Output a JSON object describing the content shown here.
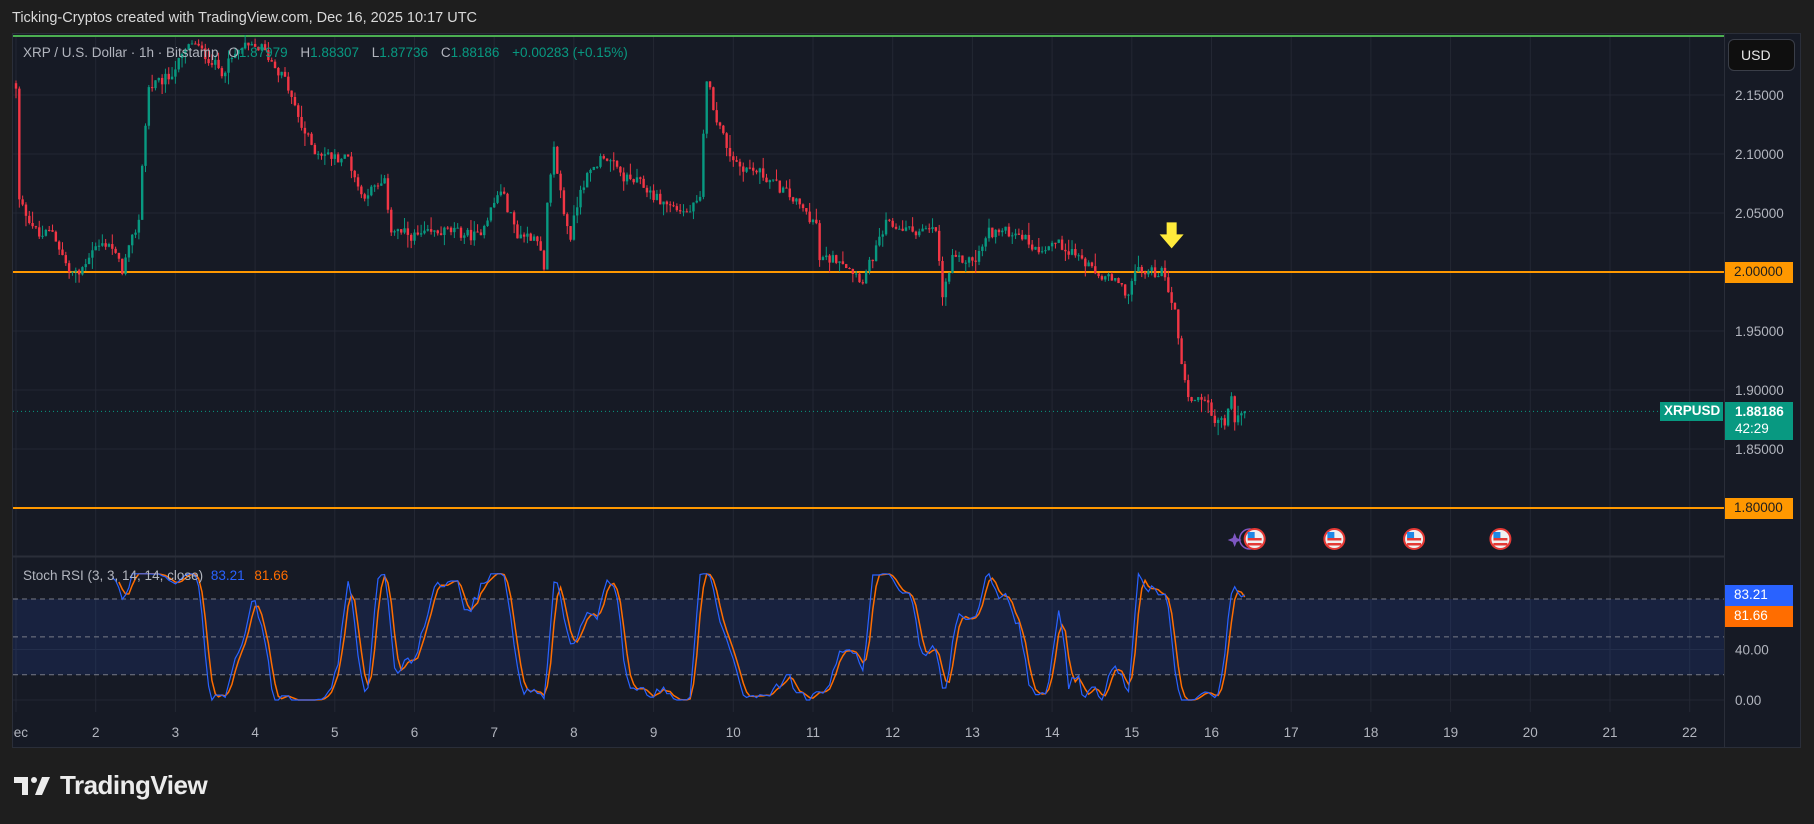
{
  "header": {
    "attribution": "Ticking-Cryptos created with TradingView.com, Dec 16, 2025 10:17 UTC"
  },
  "legend": {
    "symbol": "XRP / U.S. Dollar · 1h · Bitstamp",
    "o_label": "O",
    "o": "1.87979",
    "h_label": "H",
    "h": "1.88307",
    "l_label": "L",
    "l": "1.87736",
    "c_label": "C",
    "c": "1.88186",
    "change": "+0.00283 (+0.15%)"
  },
  "currency_button": "USD",
  "price_axis": {
    "ticks": [
      {
        "value": 2.15,
        "label": "2.15000"
      },
      {
        "value": 2.1,
        "label": "2.10000"
      },
      {
        "value": 2.05,
        "label": "2.05000"
      },
      {
        "value": 1.95,
        "label": "1.95000"
      },
      {
        "value": 1.9,
        "label": "1.90000"
      },
      {
        "value": 1.85,
        "label": "1.85000"
      }
    ]
  },
  "last_price": {
    "symbol": "XRPUSD",
    "price": "1.88186",
    "countdown": "42:29",
    "value": 1.88186,
    "color": "#089981"
  },
  "horizontal_lines": [
    {
      "price": 2.0,
      "label": "2.00000",
      "color": "#ff9800"
    },
    {
      "price": 1.8,
      "label": "1.80000",
      "color": "#ff9800"
    },
    {
      "price": 2.2,
      "color": "#4caf50"
    }
  ],
  "arrow_annotation": {
    "time": "2025-12-15T12:00",
    "price": 2.02,
    "direction": "down",
    "color": "#ffeb3b"
  },
  "events": [
    {
      "time": "2025-12-16T13:00",
      "icon": "us-flag-icon",
      "extra": "sparkle-icon"
    },
    {
      "time": "2025-12-17T13:00",
      "icon": "us-flag-icon"
    },
    {
      "time": "2025-12-18T13:00",
      "icon": "us-flag-icon"
    },
    {
      "time": "2025-12-19T15:00",
      "icon": "us-flag-icon"
    }
  ],
  "indicator": {
    "name": "Stoch RSI (3, 3, 14, 14, close)",
    "k": "83.21",
    "d": "81.66",
    "k_color": "#2962ff",
    "d_color": "#ff6d00",
    "upper_band": 80,
    "middle_band": 50,
    "lower_band": 20,
    "axis_ticks": [
      {
        "value": 40,
        "label": "40.00"
      },
      {
        "value": 0,
        "label": "0.00"
      }
    ]
  },
  "time_axis": {
    "labels": [
      {
        "day": 1,
        "label": "Dec"
      },
      {
        "day": 2,
        "label": "2"
      },
      {
        "day": 3,
        "label": "3"
      },
      {
        "day": 4,
        "label": "4"
      },
      {
        "day": 5,
        "label": "5"
      },
      {
        "day": 6,
        "label": "6"
      },
      {
        "day": 7,
        "label": "7"
      },
      {
        "day": 8,
        "label": "8"
      },
      {
        "day": 9,
        "label": "9"
      },
      {
        "day": 10,
        "label": "10"
      },
      {
        "day": 11,
        "label": "11"
      },
      {
        "day": 12,
        "label": "12"
      },
      {
        "day": 13,
        "label": "13"
      },
      {
        "day": 14,
        "label": "14"
      },
      {
        "day": 15,
        "label": "15"
      },
      {
        "day": 16,
        "label": "16"
      },
      {
        "day": 17,
        "label": "17"
      },
      {
        "day": 18,
        "label": "18"
      },
      {
        "day": 19,
        "label": "19"
      },
      {
        "day": 20,
        "label": "20"
      },
      {
        "day": 21,
        "label": "21"
      },
      {
        "day": 22,
        "label": "22"
      }
    ]
  },
  "logo": "TradingView",
  "chart_data": {
    "type": "candlestick",
    "interval": "1h",
    "up_color": "#089981",
    "down_color": "#f23645",
    "ylim": [
      1.76,
      2.2
    ],
    "close_path": [
      [
        "2025-12-01T00:00",
        2.154
      ],
      [
        "2025-12-01T01:00",
        2.06
      ],
      [
        "2025-12-01T04:00",
        2.045
      ],
      [
        "2025-12-01T07:00",
        2.03
      ],
      [
        "2025-12-01T11:00",
        2.035
      ],
      [
        "2025-12-01T16:00",
        2.0
      ],
      [
        "2025-12-01T19:00",
        1.998
      ],
      [
        "2025-12-01T23:00",
        2.02
      ],
      [
        "2025-12-02T04:00",
        2.025
      ],
      [
        "2025-12-02T08:00",
        2.002
      ],
      [
        "2025-12-02T13:00",
        2.044
      ],
      [
        "2025-12-02T14:00",
        2.092
      ],
      [
        "2025-12-02T16:00",
        2.156
      ],
      [
        "2025-12-02T22:00",
        2.165
      ],
      [
        "2025-12-03T05:00",
        2.195
      ],
      [
        "2025-12-03T14:00",
        2.17
      ],
      [
        "2025-12-03T20:00",
        2.19
      ],
      [
        "2025-12-04T02:00",
        2.19
      ],
      [
        "2025-12-04T09:00",
        2.163
      ],
      [
        "2025-12-04T14:00",
        2.123
      ],
      [
        "2025-12-04T18:00",
        2.103
      ],
      [
        "2025-12-05T00:00",
        2.097
      ],
      [
        "2025-12-05T04:00",
        2.097
      ],
      [
        "2025-12-05T08:00",
        2.065
      ],
      [
        "2025-12-05T15:00",
        2.075
      ],
      [
        "2025-12-05T17:00",
        2.036
      ],
      [
        "2025-12-06T00:00",
        2.03
      ],
      [
        "2025-12-06T10:00",
        2.035
      ],
      [
        "2025-12-06T19:00",
        2.03
      ],
      [
        "2025-12-07T02:00",
        2.07
      ],
      [
        "2025-12-07T07:00",
        2.032
      ],
      [
        "2025-12-07T13:00",
        2.03
      ],
      [
        "2025-12-07T15:00",
        2.0
      ],
      [
        "2025-12-07T16:00",
        2.055
      ],
      [
        "2025-12-07T18:00",
        2.103
      ],
      [
        "2025-12-07T21:00",
        2.05
      ],
      [
        "2025-12-07T23:00",
        2.03
      ],
      [
        "2025-12-08T02:00",
        2.072
      ],
      [
        "2025-12-08T09:00",
        2.1
      ],
      [
        "2025-12-08T15:00",
        2.08
      ],
      [
        "2025-12-08T20:00",
        2.075
      ],
      [
        "2025-12-09T02:00",
        2.06
      ],
      [
        "2025-12-09T10:00",
        2.05
      ],
      [
        "2025-12-09T14:00",
        2.06
      ],
      [
        "2025-12-09T15:00",
        2.114
      ],
      [
        "2025-12-09T16:00",
        2.165
      ],
      [
        "2025-12-09T19:00",
        2.13
      ],
      [
        "2025-12-09T23:00",
        2.1
      ],
      [
        "2025-12-10T02:00",
        2.09
      ],
      [
        "2025-12-10T08:00",
        2.084
      ],
      [
        "2025-12-10T16:00",
        2.067
      ],
      [
        "2025-12-10T22:00",
        2.05
      ],
      [
        "2025-12-11T01:00",
        2.04
      ],
      [
        "2025-12-11T02:00",
        2.01
      ],
      [
        "2025-12-11T08:00",
        2.012
      ],
      [
        "2025-12-11T15:00",
        1.993
      ],
      [
        "2025-12-11T19:00",
        2.019
      ],
      [
        "2025-12-11T22:00",
        2.04
      ],
      [
        "2025-12-12T06:00",
        2.035
      ],
      [
        "2025-12-12T13:00",
        2.035
      ],
      [
        "2025-12-12T15:00",
        1.979
      ],
      [
        "2025-12-12T18:00",
        2.01
      ],
      [
        "2025-12-13T01:00",
        2.01
      ],
      [
        "2025-12-13T05:00",
        2.034
      ],
      [
        "2025-12-13T14:00",
        2.034
      ],
      [
        "2025-12-13T19:00",
        2.019
      ],
      [
        "2025-12-14T01:00",
        2.025
      ],
      [
        "2025-12-14T07:00",
        2.016
      ],
      [
        "2025-12-14T13:00",
        1.998
      ],
      [
        "2025-12-14T18:00",
        1.993
      ],
      [
        "2025-12-14T23:00",
        1.982
      ],
      [
        "2025-12-15T01:00",
        2.0
      ],
      [
        "2025-12-15T09:00",
        2.0
      ],
      [
        "2025-12-15T11:00",
        1.987
      ],
      [
        "2025-12-15T13:00",
        1.965
      ],
      [
        "2025-12-15T15:00",
        1.925
      ],
      [
        "2025-12-15T17:00",
        1.892
      ],
      [
        "2025-12-15T22:00",
        1.894
      ],
      [
        "2025-12-16T00:00",
        1.877
      ],
      [
        "2025-12-16T04:00",
        1.872
      ],
      [
        "2025-12-16T06:00",
        1.892
      ],
      [
        "2025-12-16T07:00",
        1.875
      ],
      [
        "2025-12-16T10:00",
        1.88186
      ]
    ]
  }
}
